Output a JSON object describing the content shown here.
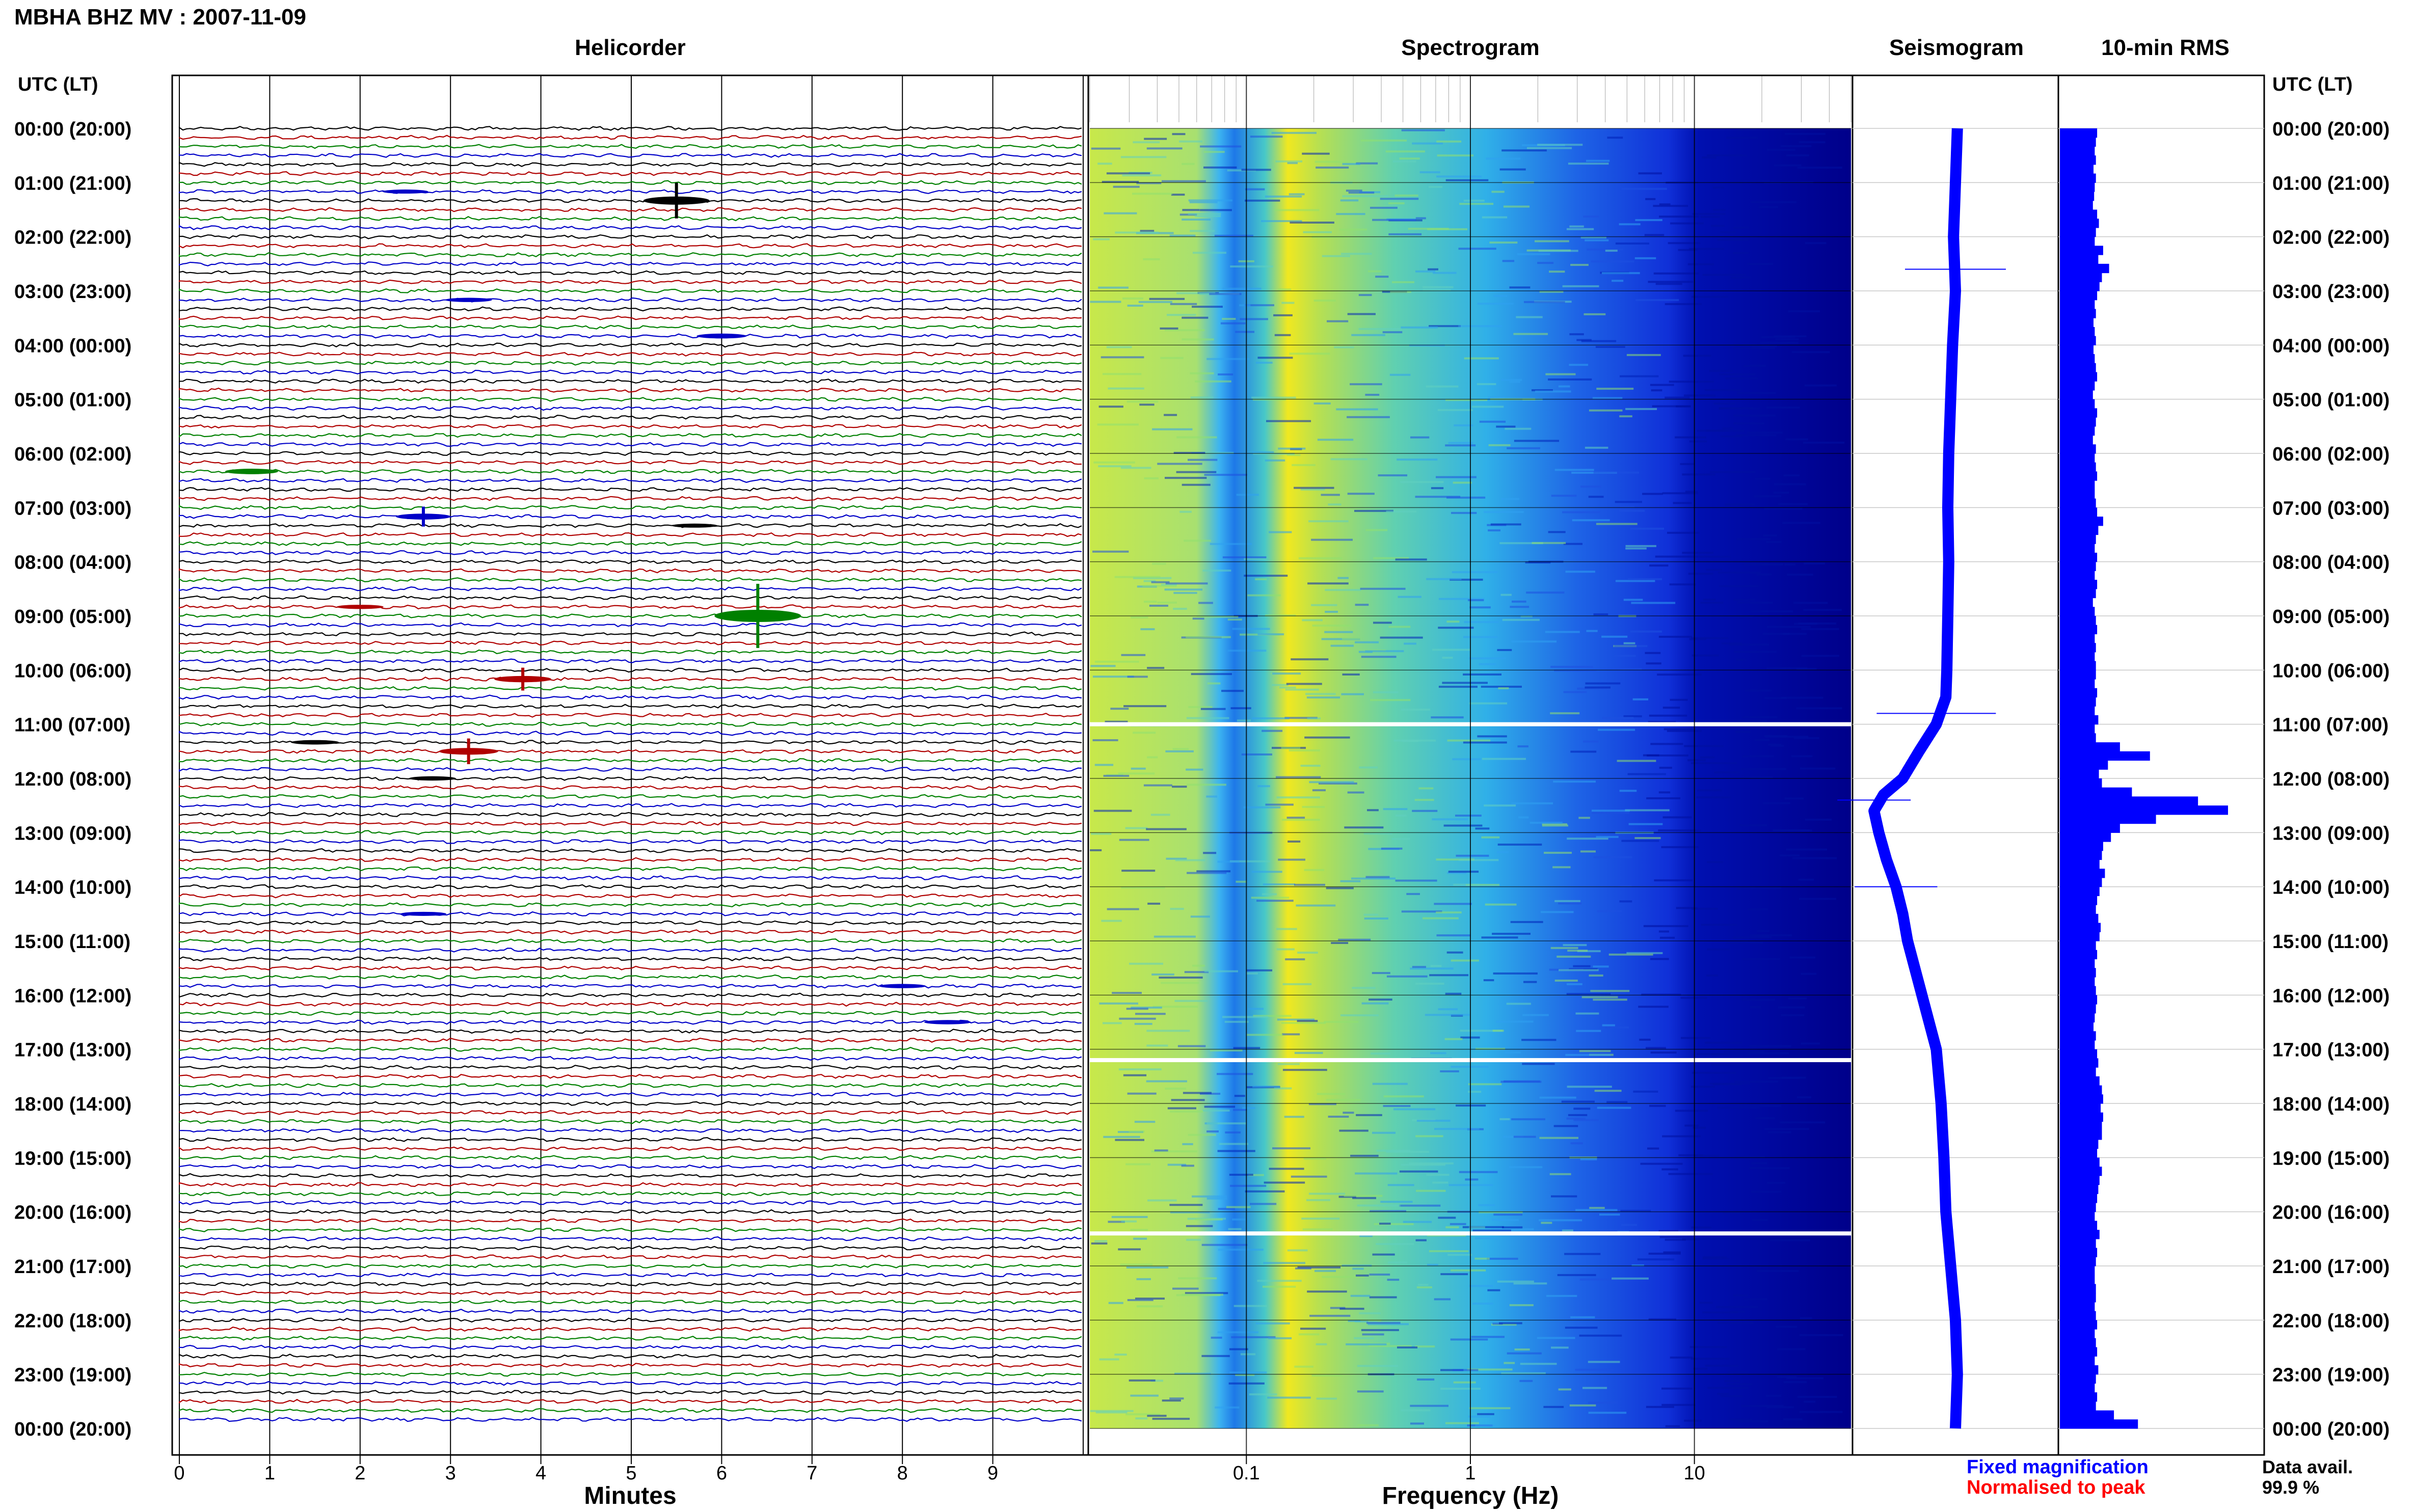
{
  "header": {
    "title": "MBHA BHZ MV : 2007-11-09"
  },
  "panels": {
    "helicorder": "Helicorder",
    "spectrogram": "Spectrogram",
    "seismogram": "Seismogram",
    "rms": "10-min RMS"
  },
  "axis": {
    "left_header": "UTC (LT)",
    "right_header": "UTC (LT)",
    "time_labels": [
      "00:00 (20:00)",
      "01:00 (21:00)",
      "02:00 (22:00)",
      "03:00 (23:00)",
      "04:00 (00:00)",
      "05:00 (01:00)",
      "06:00 (02:00)",
      "07:00 (03:00)",
      "08:00 (04:00)",
      "09:00 (05:00)",
      "10:00 (06:00)",
      "11:00 (07:00)",
      "12:00 (08:00)",
      "13:00 (09:00)",
      "14:00 (10:00)",
      "15:00 (11:00)",
      "16:00 (12:00)",
      "17:00 (13:00)",
      "18:00 (14:00)",
      "19:00 (15:00)",
      "20:00 (16:00)",
      "21:00 (17:00)",
      "22:00 (18:00)",
      "23:00 (19:00)",
      "00:00 (20:00)"
    ],
    "minutes_label": "Minutes",
    "minutes_ticks": [
      "0",
      "1",
      "2",
      "3",
      "4",
      "5",
      "6",
      "7",
      "8",
      "9"
    ],
    "frequency_label": "Frequency (Hz)",
    "frequency_ticks": [
      "0.1",
      "1",
      "10"
    ]
  },
  "legend": {
    "fixed": "Fixed magnification",
    "normalised": "Normalised to peak",
    "fixed_color": "#0000ff",
    "normalised_color": "#ff0000"
  },
  "availability": {
    "label": "Data avail.",
    "value": "99.9 %"
  },
  "colors": {
    "trace_cycle": [
      "#000000",
      "#b00000",
      "#008000",
      "#0000c8"
    ],
    "seismogram": "#0000ff",
    "rms": "#0000ff",
    "spectrogram_high": "#f0e000",
    "spectrogram_low": "#00008c"
  },
  "chart_data": [
    {
      "type": "line",
      "name": "Helicorder",
      "x_range_minutes": [
        0,
        10
      ],
      "rows": 144,
      "row_minutes": 10,
      "note_events": [
        {
          "row": 7,
          "minute": 2.5,
          "amp": 0.5
        },
        {
          "row": 8,
          "minute": 5.5,
          "amp": 2.5
        },
        {
          "row": 19,
          "minute": 3.2,
          "amp": 0.6
        },
        {
          "row": 23,
          "minute": 6.0,
          "amp": 0.9
        },
        {
          "row": 38,
          "minute": 0.8,
          "amp": 1.2
        },
        {
          "row": 43,
          "minute": 2.7,
          "amp": 1.4
        },
        {
          "row": 44,
          "minute": 5.7,
          "amp": 0.5
        },
        {
          "row": 53,
          "minute": 2.0,
          "amp": 0.6
        },
        {
          "row": 54,
          "minute": 6.4,
          "amp": 4.5
        },
        {
          "row": 61,
          "minute": 3.8,
          "amp": 1.6
        },
        {
          "row": 68,
          "minute": 1.5,
          "amp": 0.7
        },
        {
          "row": 69,
          "minute": 3.2,
          "amp": 1.8
        },
        {
          "row": 72,
          "minute": 2.8,
          "amp": 0.6
        },
        {
          "row": 87,
          "minute": 2.7,
          "amp": 0.5
        },
        {
          "row": 95,
          "minute": 8.0,
          "amp": 0.6
        },
        {
          "row": 99,
          "minute": 8.5,
          "amp": 0.6
        }
      ]
    },
    {
      "type": "heatmap",
      "name": "Spectrogram",
      "x_scale": "log",
      "x_range_hz": [
        0.02,
        50
      ],
      "y_range_hours": [
        0,
        24
      ],
      "gap_hours": [
        11.0,
        17.2,
        20.4
      ]
    },
    {
      "type": "line",
      "name": "Seismogram",
      "x_range": [
        -1,
        1
      ],
      "y_range_hours": [
        0,
        24
      ],
      "y_hours": [
        0,
        1,
        2,
        3,
        4,
        5,
        6,
        7,
        8,
        9,
        10,
        10.5,
        11,
        11.5,
        12,
        12.3,
        12.6,
        13,
        13.5,
        14,
        14.5,
        15,
        16,
        17,
        18,
        19,
        20,
        21,
        22,
        23,
        24
      ],
      "x_values": [
        0.02,
        0.0,
        -0.02,
        0.0,
        -0.03,
        -0.05,
        -0.07,
        -0.08,
        -0.07,
        -0.08,
        -0.09,
        -0.1,
        -0.2,
        -0.38,
        -0.55,
        -0.75,
        -0.85,
        -0.8,
        -0.72,
        -0.62,
        -0.55,
        -0.5,
        -0.35,
        -0.2,
        -0.15,
        -0.12,
        -0.1,
        -0.05,
        0.0,
        0.02,
        0.0
      ]
    },
    {
      "type": "bar",
      "name": "10-min RMS",
      "y_range_hours": [
        0,
        24
      ],
      "values": [
        0.62,
        0.6,
        0.58,
        0.6,
        0.56,
        0.6,
        0.58,
        0.57,
        0.55,
        0.62,
        0.65,
        0.6,
        0.58,
        0.72,
        0.64,
        0.82,
        0.7,
        0.66,
        0.62,
        0.58,
        0.6,
        0.56,
        0.58,
        0.6,
        0.56,
        0.58,
        0.6,
        0.62,
        0.58,
        0.55,
        0.58,
        0.62,
        0.6,
        0.58,
        0.55,
        0.6,
        0.58,
        0.6,
        0.62,
        0.58,
        0.58,
        0.6,
        0.62,
        0.72,
        0.64,
        0.6,
        0.58,
        0.62,
        0.6,
        0.58,
        0.62,
        0.6,
        0.55,
        0.58,
        0.6,
        0.62,
        0.58,
        0.6,
        0.58,
        0.6,
        0.6,
        0.58,
        0.62,
        0.6,
        0.58,
        0.64,
        0.58,
        0.6,
        1.0,
        1.5,
        0.8,
        0.65,
        0.7,
        1.2,
        2.3,
        2.8,
        1.6,
        1.0,
        0.85,
        0.72,
        0.7,
        0.66,
        0.75,
        0.7,
        0.66,
        0.62,
        0.6,
        0.64,
        0.68,
        0.66,
        0.6,
        0.62,
        0.58,
        0.6,
        0.58,
        0.6,
        0.62,
        0.6,
        0.58,
        0.56,
        0.6,
        0.58,
        0.62,
        0.64,
        0.6,
        0.66,
        0.7,
        0.72,
        0.68,
        0.72,
        0.7,
        0.7,
        0.64,
        0.62,
        0.66,
        0.7,
        0.66,
        0.64,
        0.62,
        0.6,
        0.58,
        0.62,
        0.66,
        0.6,
        0.62,
        0.6,
        0.58,
        0.58,
        0.6,
        0.6,
        0.58,
        0.6,
        0.62,
        0.58,
        0.6,
        0.62,
        0.58,
        0.64,
        0.6,
        0.58,
        0.62,
        0.6,
        0.9,
        1.3
      ]
    }
  ]
}
